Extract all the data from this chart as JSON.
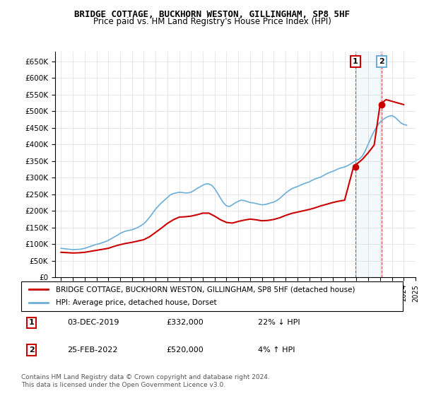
{
  "title": "BRIDGE COTTAGE, BUCKHORN WESTON, GILLINGHAM, SP8 5HF",
  "subtitle": "Price paid vs. HM Land Registry's House Price Index (HPI)",
  "hpi_color": "#6baed6",
  "price_color": "#cc0000",
  "marker_color": "#cc0000",
  "background_color": "#ffffff",
  "grid_color": "#dddddd",
  "ylim": [
    0,
    680000
  ],
  "yticks": [
    0,
    50000,
    100000,
    150000,
    200000,
    250000,
    300000,
    350000,
    400000,
    450000,
    500000,
    550000,
    600000,
    650000
  ],
  "legend_entry1": "BRIDGE COTTAGE, BUCKHORN WESTON, GILLINGHAM, SP8 5HF (detached house)",
  "legend_entry2": "HPI: Average price, detached house, Dorset",
  "transaction1_label": "1",
  "transaction1_date": "03-DEC-2019",
  "transaction1_price": "£332,000",
  "transaction1_hpi": "22% ↓ HPI",
  "transaction2_label": "2",
  "transaction2_date": "25-FEB-2022",
  "transaction2_price": "£520,000",
  "transaction2_hpi": "4% ↑ HPI",
  "footer": "Contains HM Land Registry data © Crown copyright and database right 2024.\nThis data is licensed under the Open Government Licence v3.0.",
  "hpi_data": {
    "years": [
      1995,
      1995.25,
      1995.5,
      1995.75,
      1996,
      1996.25,
      1996.5,
      1996.75,
      1997,
      1997.25,
      1997.5,
      1997.75,
      1998,
      1998.25,
      1998.5,
      1998.75,
      1999,
      1999.25,
      1999.5,
      1999.75,
      2000,
      2000.25,
      2000.5,
      2000.75,
      2001,
      2001.25,
      2001.5,
      2001.75,
      2002,
      2002.25,
      2002.5,
      2002.75,
      2003,
      2003.25,
      2003.5,
      2003.75,
      2004,
      2004.25,
      2004.5,
      2004.75,
      2005,
      2005.25,
      2005.5,
      2005.75,
      2006,
      2006.25,
      2006.5,
      2006.75,
      2007,
      2007.25,
      2007.5,
      2007.75,
      2008,
      2008.25,
      2008.5,
      2008.75,
      2009,
      2009.25,
      2009.5,
      2009.75,
      2010,
      2010.25,
      2010.5,
      2010.75,
      2011,
      2011.25,
      2011.5,
      2011.75,
      2012,
      2012.25,
      2012.5,
      2012.75,
      2013,
      2013.25,
      2013.5,
      2013.75,
      2014,
      2014.25,
      2014.5,
      2014.75,
      2015,
      2015.25,
      2015.5,
      2015.75,
      2016,
      2016.25,
      2016.5,
      2016.75,
      2017,
      2017.25,
      2017.5,
      2017.75,
      2018,
      2018.25,
      2018.5,
      2018.75,
      2019,
      2019.25,
      2019.5,
      2019.75,
      2020,
      2020.25,
      2020.5,
      2020.75,
      2021,
      2021.25,
      2021.5,
      2021.75,
      2022,
      2022.25,
      2022.5,
      2022.75,
      2023,
      2023.25,
      2023.5,
      2023.75,
      2024,
      2024.25
    ],
    "values": [
      87000,
      86000,
      85000,
      84000,
      83000,
      83500,
      84000,
      85000,
      87000,
      90000,
      93000,
      96000,
      99000,
      101000,
      104000,
      107000,
      111000,
      116000,
      121000,
      126000,
      132000,
      136000,
      139000,
      141000,
      143000,
      146000,
      150000,
      155000,
      161000,
      170000,
      181000,
      193000,
      205000,
      215000,
      224000,
      232000,
      240000,
      248000,
      252000,
      254000,
      256000,
      255000,
      254000,
      254000,
      256000,
      261000,
      267000,
      272000,
      277000,
      281000,
      281000,
      277000,
      267000,
      253000,
      238000,
      224000,
      215000,
      213000,
      218000,
      224000,
      229000,
      232000,
      231000,
      228000,
      225000,
      224000,
      222000,
      220000,
      218000,
      219000,
      221000,
      224000,
      226000,
      231000,
      237000,
      245000,
      253000,
      260000,
      266000,
      270000,
      273000,
      277000,
      281000,
      284000,
      287000,
      292000,
      296000,
      299000,
      302000,
      307000,
      312000,
      316000,
      319000,
      323000,
      327000,
      330000,
      332000,
      336000,
      341000,
      347000,
      352000,
      356000,
      365000,
      381000,
      401000,
      422000,
      440000,
      455000,
      467000,
      475000,
      481000,
      485000,
      487000,
      482000,
      474000,
      465000,
      460000,
      458000
    ]
  },
  "price_data": {
    "years": [
      1995,
      1995.5,
      1996,
      1996.5,
      1997,
      1997.5,
      1998,
      1998.5,
      1999,
      1999.5,
      2000,
      2000.5,
      2001,
      2001.5,
      2002,
      2002.5,
      2003,
      2003.5,
      2004,
      2004.5,
      2005,
      2005.5,
      2006,
      2006.5,
      2007,
      2007.5,
      2008,
      2008.5,
      2009,
      2009.5,
      2010,
      2010.5,
      2011,
      2011.5,
      2012,
      2012.5,
      2013,
      2013.5,
      2014,
      2014.5,
      2015,
      2015.5,
      2016,
      2016.5,
      2017,
      2017.5,
      2018,
      2018.5,
      2019,
      2019.75,
      2020,
      2020.5,
      2021,
      2021.5,
      2022,
      2022.5,
      2023,
      2023.5,
      2024
    ],
    "values": [
      75000,
      74000,
      73000,
      73500,
      75000,
      78000,
      81000,
      84000,
      87000,
      93000,
      98000,
      102000,
      105000,
      109000,
      113000,
      122000,
      135000,
      148000,
      162000,
      173000,
      181000,
      182000,
      184000,
      188000,
      193000,
      193000,
      184000,
      173000,
      165000,
      163000,
      168000,
      172000,
      175000,
      173000,
      170000,
      171000,
      174000,
      179000,
      186000,
      192000,
      196000,
      200000,
      204000,
      209000,
      215000,
      220000,
      225000,
      229000,
      232000,
      332000,
      340000,
      355000,
      375000,
      398000,
      520000,
      535000,
      530000,
      525000,
      520000
    ]
  },
  "transaction_points": [
    {
      "year": 2019.917,
      "price": 332000,
      "label": "1"
    },
    {
      "year": 2022.125,
      "price": 520000,
      "label": "2"
    }
  ]
}
